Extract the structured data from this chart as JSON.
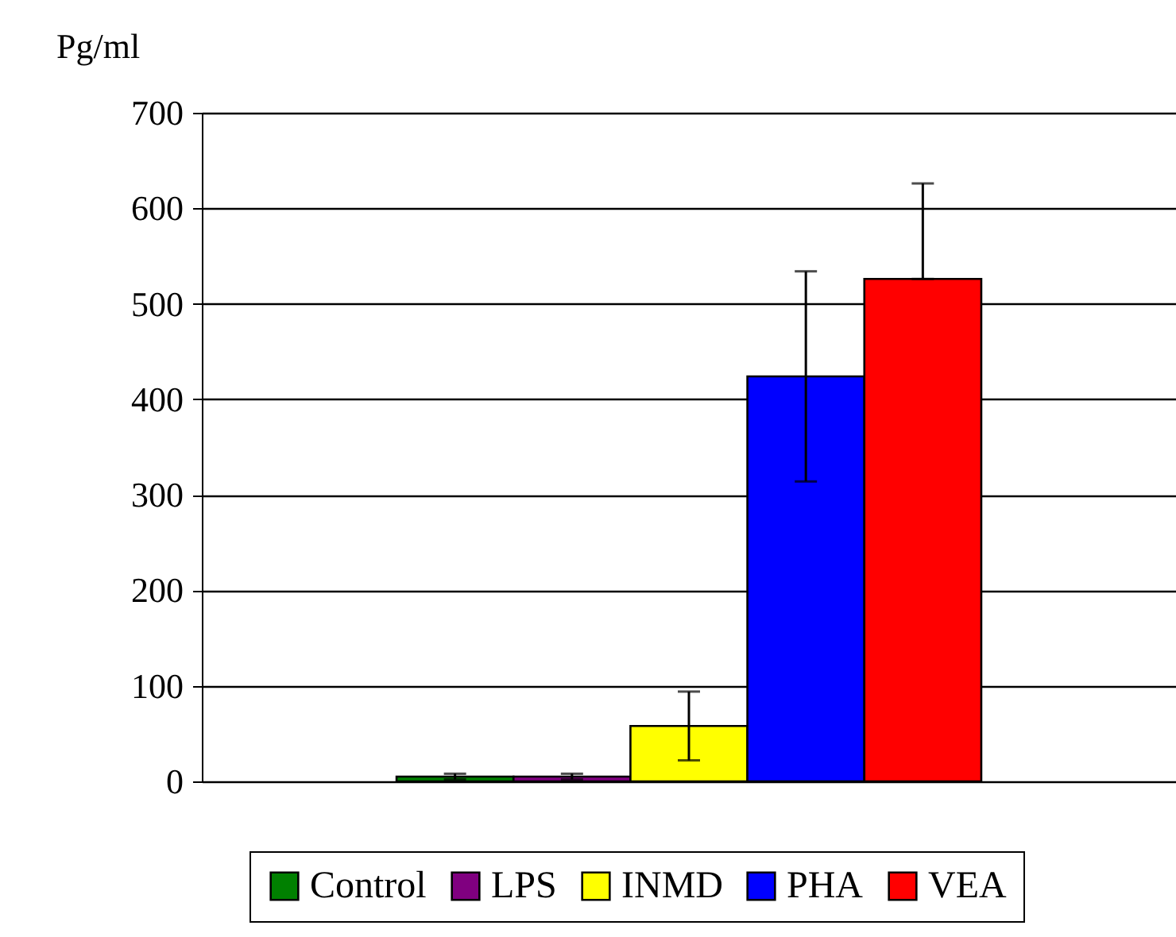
{
  "chart_data": {
    "type": "bar",
    "ylabel": "Pg/ml",
    "categories": [
      null
    ],
    "series": [
      {
        "name": "Control",
        "color": "#008000",
        "values": [
          5
        ],
        "errors": [
          3
        ]
      },
      {
        "name": "LPS",
        "color": "#800080",
        "values": [
          5
        ],
        "errors": [
          3
        ]
      },
      {
        "name": "INMD",
        "color": "#ffff00",
        "values": [
          58
        ],
        "errors": [
          36
        ]
      },
      {
        "name": "PHA",
        "color": "#0000ff",
        "values": [
          424
        ],
        "errors": [
          110
        ]
      },
      {
        "name": "VEA",
        "color": "#ff0000",
        "values": [
          526
        ],
        "errors": [
          [
            526,
            626
          ]
        ]
      }
    ],
    "ylim": [
      0,
      700
    ],
    "yticks": [
      0,
      100,
      200,
      300,
      400,
      500,
      600,
      700
    ],
    "grid": "y",
    "legend": "bottom",
    "tick_labels": "y"
  }
}
